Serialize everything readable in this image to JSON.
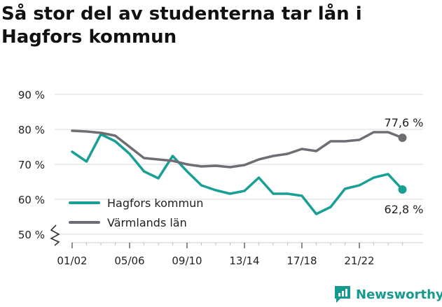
{
  "title": "Så stor del av studenterna tar lån i Hagfors kommun",
  "brand": {
    "name": "Newsworthy",
    "color": "#169a8f"
  },
  "chart_data": {
    "type": "line",
    "title": "Så stor del av studenterna tar lån i Hagfors kommun",
    "xlabel": "",
    "ylabel": "",
    "ylim": [
      50,
      90
    ],
    "y_axis_broken": true,
    "y_ticks": [
      50,
      60,
      70,
      80,
      90
    ],
    "y_tick_labels": [
      "50 %",
      "60 %",
      "70 %",
      "80 %",
      "90 %"
    ],
    "x_tick_labels": [
      "01/02",
      "05/06",
      "09/10",
      "13/14",
      "17/18",
      "21/22"
    ],
    "x_tick_indices": [
      0,
      4,
      8,
      12,
      16,
      20
    ],
    "grid": true,
    "legend_position": "bottom-left",
    "series": [
      {
        "name": "Hagfors kommun",
        "color": "#18a096",
        "values": [
          73.6,
          70.8,
          78.6,
          76.6,
          73.0,
          68.0,
          66.0,
          72.4,
          68.0,
          64.0,
          62.6,
          61.6,
          62.4,
          66.2,
          61.6,
          61.6,
          61.0,
          55.8,
          57.8,
          63.0,
          64.0,
          66.2,
          67.2,
          62.8
        ],
        "end_label": "62,8 %"
      },
      {
        "name": "Värmlands län",
        "color": "#6e6d73",
        "values": [
          79.6,
          79.4,
          79.0,
          78.2,
          75.0,
          71.8,
          71.4,
          71.0,
          70.0,
          69.4,
          69.6,
          69.2,
          69.8,
          71.4,
          72.4,
          73.0,
          74.4,
          73.8,
          76.6,
          76.6,
          77.0,
          79.2,
          79.2,
          77.6
        ],
        "end_label": "77,6 %"
      }
    ]
  }
}
